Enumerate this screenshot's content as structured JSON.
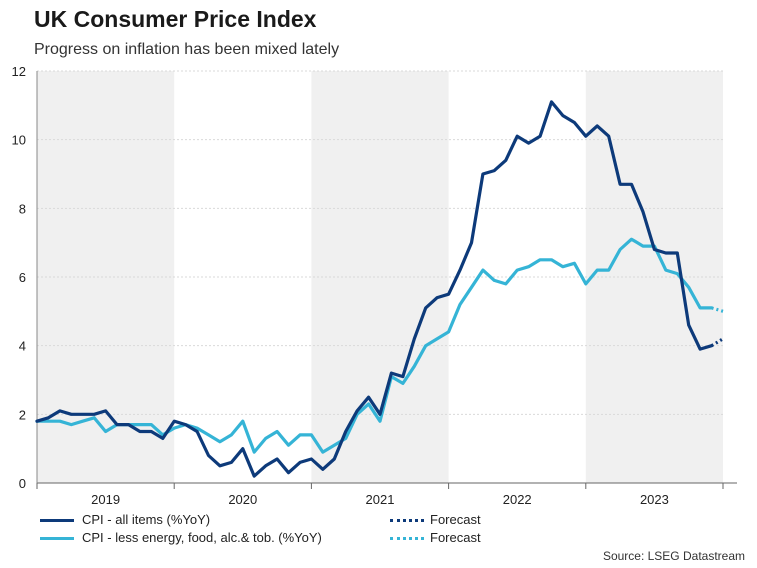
{
  "header": {
    "title": "UK Consumer Price Index",
    "subtitle": "Progress on inflation has been mixed lately"
  },
  "source": "Source: LSEG Datastream",
  "colors": {
    "cpi": "#0d3a7a",
    "core": "#35b4d6",
    "shade": "#f0f0f0",
    "grid": "#d9d9d9"
  },
  "legend": {
    "cpi": "CPI - all items (%YoY)",
    "core": "CPI - less energy, food, alc.& tob. (%YoY)",
    "cpi_forecast": "Forecast",
    "core_forecast": "Forecast"
  },
  "chart_data": {
    "type": "line",
    "title": "UK Consumer Price Index",
    "subtitle": "Progress on inflation has been mixed lately",
    "xlabel": "",
    "ylabel": "",
    "ylim": [
      0,
      12
    ],
    "yticks": [
      0,
      2,
      4,
      6,
      8,
      10,
      12
    ],
    "x_start": "2019-01",
    "x_end": "2024-01",
    "year_labels": [
      "2019",
      "2020",
      "2021",
      "2022",
      "2023"
    ],
    "grid": true,
    "shaded_years": [
      "2019",
      "2021",
      "2023"
    ],
    "series": [
      {
        "name": "CPI - all items (%YoY)",
        "values": [
          1.8,
          1.9,
          2.1,
          2.0,
          2.0,
          2.0,
          2.1,
          1.7,
          1.7,
          1.5,
          1.5,
          1.3,
          1.8,
          1.7,
          1.5,
          0.8,
          0.5,
          0.6,
          1.0,
          0.2,
          0.5,
          0.7,
          0.3,
          0.6,
          0.7,
          0.4,
          0.7,
          1.5,
          2.1,
          2.5,
          2.0,
          3.2,
          3.1,
          4.2,
          5.1,
          5.4,
          5.5,
          6.2,
          7.0,
          9.0,
          9.1,
          9.4,
          10.1,
          9.9,
          10.1,
          11.1,
          10.7,
          10.5,
          10.1,
          10.4,
          10.1,
          8.7,
          8.7,
          7.9,
          6.8,
          6.7,
          6.7,
          4.6,
          3.9,
          4.0
        ],
        "forecast": [
          4.0,
          4.2
        ]
      },
      {
        "name": "CPI - less energy, food, alc.& tob. (%YoY)",
        "values": [
          1.8,
          1.8,
          1.8,
          1.7,
          1.8,
          1.9,
          1.5,
          1.7,
          1.7,
          1.7,
          1.7,
          1.4,
          1.6,
          1.7,
          1.6,
          1.4,
          1.2,
          1.4,
          1.8,
          0.9,
          1.3,
          1.5,
          1.1,
          1.4,
          1.4,
          0.9,
          1.1,
          1.3,
          2.0,
          2.3,
          1.8,
          3.1,
          2.9,
          3.4,
          4.0,
          4.2,
          4.4,
          5.2,
          5.7,
          6.2,
          5.9,
          5.8,
          6.2,
          6.3,
          6.5,
          6.5,
          6.3,
          6.4,
          5.8,
          6.2,
          6.2,
          6.8,
          7.1,
          6.9,
          6.9,
          6.2,
          6.1,
          5.7,
          5.1,
          5.1
        ],
        "forecast": [
          5.1,
          5.0
        ]
      }
    ]
  }
}
